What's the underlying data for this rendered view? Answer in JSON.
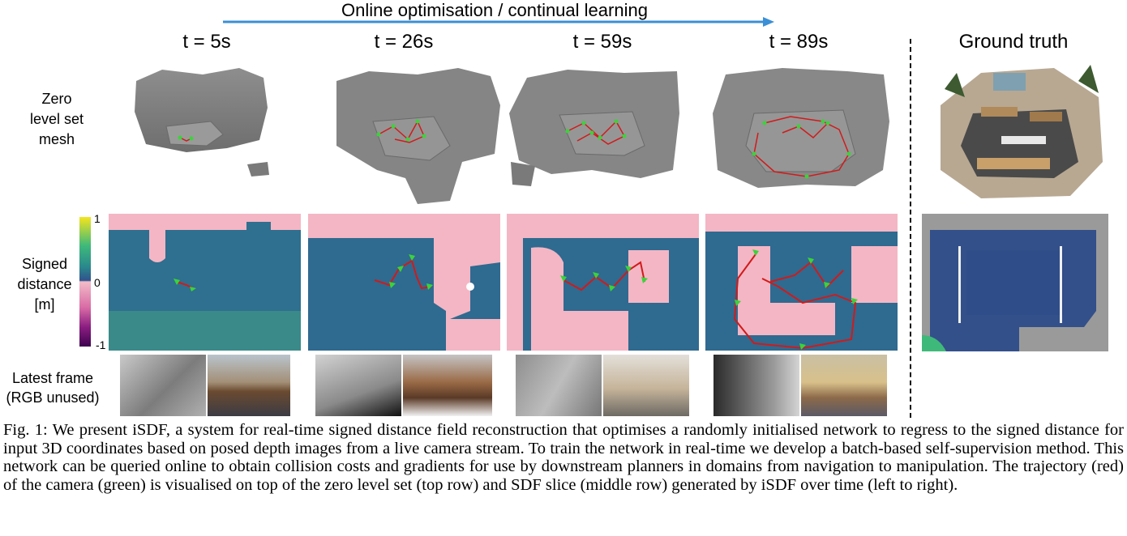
{
  "header": {
    "arrow_label": "Online optimisation / continual learning"
  },
  "columns": [
    {
      "title": "t = 5s"
    },
    {
      "title": "t = 26s"
    },
    {
      "title": "t = 59s"
    },
    {
      "title": "t = 89s"
    },
    {
      "title": "Ground truth"
    }
  ],
  "row_labels": {
    "mesh": [
      "Zero",
      "level set",
      "mesh"
    ],
    "sdf": [
      "Signed",
      "distance",
      "[m]"
    ],
    "frame": [
      "Latest frame",
      "(RGB unused)"
    ]
  },
  "colorbar": {
    "ticks": [
      "1",
      "0",
      "-1"
    ],
    "colors": [
      "#f5e51e",
      "#2a8a8c",
      "#31528d",
      "#f2bcc8",
      "#8a1d80",
      "#3d0250"
    ]
  },
  "caption": "Fig. 1: We present iSDF, a system for real-time signed distance field reconstruction that optimises a randomly initialised network to regress to the signed distance for input 3D coordinates based on posed depth images from a live camera stream. To train the network in real-time we develop a batch-based self-supervision method. This network can be queried online to obtain collision costs and gradients for use by downstream planners in domains from navigation to manipulation. The trajectory (red) of the camera (green) is visualised on top of the zero level set (top row) and SDF slice (middle row) generated by iSDF over time (left to right).",
  "colors": {
    "trajectory": "#d11a1a",
    "camera": "#3ad43a",
    "arrow": "#3b8fd6",
    "free_space_pink": "#f4b6c4",
    "sdf_blue": "#2f5f93",
    "mesh_gray": "#8a8a8a"
  }
}
